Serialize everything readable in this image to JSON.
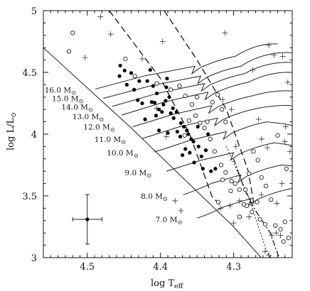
{
  "chart_data": {
    "type": "scatter",
    "xlabel": "log T",
    "xlabel_sub": "eff",
    "ylabel": "log L/L",
    "ylabel_sub": "⊙",
    "xlim": [
      4.56,
      4.22
    ],
    "ylim": [
      3.0,
      5.0
    ],
    "x_reversed": true,
    "x_ticks": [
      4.5,
      4.4,
      4.3
    ],
    "y_ticks": [
      3,
      3.5,
      4,
      4.5,
      5
    ],
    "x_tick_labels": [
      "4.5",
      "4.4",
      "4.3"
    ],
    "y_tick_labels": [
      "3",
      "3.5",
      "4",
      "4.5",
      "5"
    ],
    "zams": [
      [
        4.56,
        4.7
      ],
      [
        4.44,
        4.05
      ],
      [
        4.3,
        3.25
      ],
      [
        4.24,
        2.85
      ]
    ],
    "tracks": [
      {
        "label": "16.0 M",
        "zams": [
          4.489,
          4.365
        ],
        "tams": [
          4.353,
          4.55
        ],
        "x_end": 4.24,
        "y_end": 4.73,
        "label_pos": [
          4.515,
          4.36
        ]
      },
      {
        "label": "15.0 M",
        "zams": [
          4.478,
          4.29
        ],
        "tams": [
          4.345,
          4.47
        ],
        "x_end": 4.22,
        "y_end": 4.66,
        "label_pos": [
          4.505,
          4.29
        ]
      },
      {
        "label": "14.0 M",
        "zams": [
          4.466,
          4.225
        ],
        "tams": [
          4.34,
          4.41
        ],
        "x_end": 4.22,
        "y_end": 4.58,
        "label_pos": [
          4.492,
          4.22
        ]
      },
      {
        "label": "13.0 M",
        "zams": [
          4.453,
          4.155
        ],
        "tams": [
          4.335,
          4.34
        ],
        "x_end": 4.22,
        "y_end": 4.5,
        "label_pos": [
          4.477,
          4.145
        ]
      },
      {
        "label": "12.0 M",
        "zams": [
          4.438,
          4.06
        ],
        "tams": [
          4.33,
          4.23
        ],
        "x_end": 4.22,
        "y_end": 4.35,
        "label_pos": [
          4.462,
          4.06
        ]
      },
      {
        "label": "11.0 M",
        "zams": [
          4.425,
          3.965
        ],
        "tams": [
          4.322,
          4.13
        ],
        "x_end": 4.22,
        "y_end": 4.23,
        "label_pos": [
          4.447,
          3.96
        ]
      },
      {
        "label": "10.0 M",
        "zams": [
          4.409,
          3.855
        ],
        "tams": [
          4.31,
          4.02
        ],
        "x_end": 4.22,
        "y_end": 4.07,
        "label_pos": [
          4.43,
          3.85
        ]
      },
      {
        "label": "9.0 M",
        "zams": [
          4.392,
          3.7
        ],
        "tams": [
          4.3,
          3.85
        ],
        "x_end": 4.22,
        "y_end": 3.9,
        "label_pos": [
          4.412,
          3.69
        ]
      },
      {
        "label": "8.0 M",
        "zams": [
          4.369,
          3.51
        ],
        "tams": [
          4.29,
          3.67
        ],
        "x_end": 4.22,
        "y_end": 3.73,
        "label_pos": [
          4.39,
          3.5
        ]
      },
      {
        "label": "7.0 M",
        "zams": [
          4.35,
          3.32
        ],
        "tams": [
          4.276,
          3.48
        ],
        "x_end": 4.22,
        "y_end": 3.52,
        "label_pos": [
          4.37,
          3.31
        ]
      }
    ],
    "mass_unit_symbol": "⊙",
    "isochrones": [
      {
        "style": "long-dash",
        "points": [
          [
            4.47,
            5.0
          ],
          [
            4.4,
            4.45
          ],
          [
            4.36,
            4.0
          ],
          [
            4.33,
            3.5
          ],
          [
            4.315,
            3.4
          ]
        ]
      },
      {
        "style": "long-dash",
        "points": [
          [
            4.395,
            5.0
          ],
          [
            4.35,
            4.6
          ],
          [
            4.31,
            4.2
          ],
          [
            4.28,
            3.7
          ],
          [
            4.272,
            3.42
          ]
        ]
      },
      {
        "style": "dash-dot",
        "points": [
          [
            4.3,
            3.8
          ],
          [
            4.285,
            3.55
          ],
          [
            4.27,
            3.38
          ],
          [
            4.25,
            3.2
          ],
          [
            4.238,
            3.0
          ]
        ]
      },
      {
        "style": "dotted",
        "points": [
          [
            4.31,
            3.9
          ],
          [
            4.28,
            3.5
          ],
          [
            4.255,
            3.05
          ],
          [
            4.25,
            3.0
          ]
        ]
      }
    ],
    "series": [
      {
        "marker": "filled-circle",
        "points": [
          [
            4.456,
            4.47
          ],
          [
            4.455,
            4.555
          ],
          [
            4.449,
            4.515
          ],
          [
            4.44,
            4.495
          ],
          [
            4.436,
            4.36
          ],
          [
            4.431,
            4.275
          ],
          [
            4.425,
            4.25
          ],
          [
            4.418,
            4.43
          ],
          [
            4.414,
            4.52
          ],
          [
            4.41,
            4.39
          ],
          [
            4.405,
            4.33
          ],
          [
            4.412,
            4.26
          ],
          [
            4.408,
            4.255
          ],
          [
            4.402,
            4.2
          ],
          [
            4.398,
            4.18
          ],
          [
            4.406,
            4.15
          ],
          [
            4.392,
            4.38
          ],
          [
            4.388,
            4.3
          ],
          [
            4.383,
            4.21
          ],
          [
            4.378,
            4.18
          ],
          [
            4.396,
            4.24
          ],
          [
            4.393,
            4.27
          ],
          [
            4.372,
            4.09
          ],
          [
            4.368,
            4.06
          ],
          [
            4.364,
            4.03
          ],
          [
            4.386,
            4.17
          ],
          [
            4.382,
            4.13
          ],
          [
            4.377,
            4.02
          ],
          [
            4.373,
            3.98
          ],
          [
            4.362,
            4.0
          ],
          [
            4.358,
            3.96
          ],
          [
            4.355,
            3.94
          ],
          [
            4.348,
            3.9
          ],
          [
            4.366,
            3.88
          ],
          [
            4.344,
            3.82
          ],
          [
            4.338,
            3.87
          ],
          [
            4.331,
            3.7
          ],
          [
            4.325,
            3.72
          ],
          [
            4.342,
            3.72
          ],
          [
            4.354,
            3.77
          ],
          [
            4.37,
            3.83
          ],
          [
            4.36,
            3.85
          ],
          [
            4.421,
            4.12
          ],
          [
            4.402,
            4.03
          ],
          [
            4.39,
            4.01
          ],
          [
            4.446,
            4.4
          ],
          [
            4.391,
            4.45
          ],
          [
            4.429,
            4.43
          ],
          [
            4.349,
            4.06
          ],
          [
            4.335,
            4.0
          ]
        ]
      },
      {
        "marker": "open-circle",
        "points": [
          [
            4.52,
            4.82
          ],
          [
            4.525,
            4.67
          ],
          [
            4.448,
            4.61
          ],
          [
            4.435,
            4.47
          ],
          [
            4.405,
            4.41
          ],
          [
            4.386,
            4.36
          ],
          [
            4.374,
            4.39
          ],
          [
            4.366,
            4.31
          ],
          [
            4.357,
            4.24
          ],
          [
            4.352,
            4.15
          ],
          [
            4.346,
            4.09
          ],
          [
            4.34,
            4.05
          ],
          [
            4.332,
            3.96
          ],
          [
            4.326,
            3.86
          ],
          [
            4.317,
            3.75
          ],
          [
            4.311,
            3.69
          ],
          [
            4.303,
            3.62
          ],
          [
            4.298,
            3.6
          ],
          [
            4.292,
            3.55
          ],
          [
            4.284,
            3.55
          ],
          [
            4.286,
            3.43
          ],
          [
            4.282,
            3.42
          ],
          [
            4.275,
            3.37
          ],
          [
            4.268,
            3.45
          ],
          [
            4.264,
            3.31
          ],
          [
            4.257,
            3.27
          ],
          [
            4.249,
            3.47
          ],
          [
            4.243,
            3.26
          ],
          [
            4.236,
            3.23
          ],
          [
            4.23,
            3.29
          ],
          [
            4.225,
            3.16
          ],
          [
            4.232,
            3.13
          ],
          [
            4.256,
            3.58
          ],
          [
            4.262,
            3.65
          ],
          [
            4.228,
            3.72
          ],
          [
            4.267,
            3.79
          ],
          [
            4.273,
            3.86
          ],
          [
            4.279,
            3.68
          ],
          [
            4.311,
            4.1
          ],
          [
            4.316,
            4.2
          ],
          [
            4.322,
            4.32
          ],
          [
            4.329,
            4.26
          ],
          [
            4.336,
            4.1
          ],
          [
            4.35,
            4.3
          ],
          [
            4.361,
            4.11
          ],
          [
            4.367,
            3.99
          ],
          [
            4.304,
            3.54
          ],
          [
            4.315,
            3.63
          ],
          [
            4.321,
            3.45
          ],
          [
            4.292,
            3.33
          ],
          [
            4.24,
            3.99
          ]
        ]
      },
      {
        "marker": "plus",
        "points": [
          [
            4.482,
            4.95
          ],
          [
            4.503,
            4.62
          ],
          [
            4.468,
            4.81
          ],
          [
            4.425,
            4.61
          ],
          [
            4.397,
            4.75
          ],
          [
            4.312,
            4.82
          ],
          [
            4.252,
            4.72
          ],
          [
            4.245,
            4.64
          ],
          [
            4.233,
            4.63
          ],
          [
            4.226,
            4.42
          ],
          [
            4.274,
            4.52
          ],
          [
            4.315,
            4.28
          ],
          [
            4.303,
            4.2
          ],
          [
            4.266,
            4.12
          ],
          [
            4.254,
            3.89
          ],
          [
            4.262,
            3.96
          ],
          [
            4.23,
            3.94
          ],
          [
            4.223,
            3.86
          ],
          [
            4.234,
            3.6
          ],
          [
            4.241,
            3.44
          ],
          [
            4.262,
            3.51
          ],
          [
            4.279,
            3.33
          ],
          [
            4.292,
            3.46
          ],
          [
            4.305,
            3.42
          ],
          [
            4.318,
            3.4
          ],
          [
            4.3,
            3.28
          ],
          [
            4.248,
            3.18
          ],
          [
            4.242,
            3.2
          ],
          [
            4.236,
            3.18
          ],
          [
            4.257,
            3.05
          ],
          [
            4.252,
            3.02
          ],
          [
            4.38,
            3.46
          ],
          [
            4.372,
            3.38
          ],
          [
            4.405,
            4.21
          ],
          [
            4.392,
            3.98
          ],
          [
            4.297,
            3.9
          ],
          [
            4.229,
            4.06
          ]
        ]
      }
    ],
    "error_bar": {
      "x": 4.5,
      "y": 3.31,
      "xerr": 0.02,
      "yerr": 0.2
    }
  }
}
